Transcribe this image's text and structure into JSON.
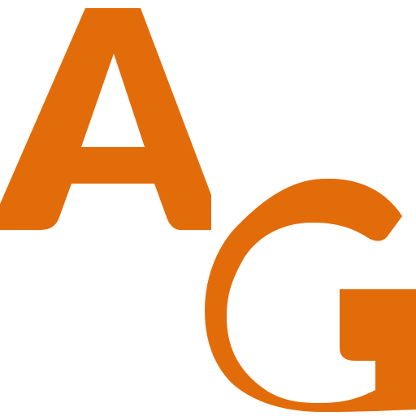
{
  "logo": {
    "letters": [
      "A",
      "G"
    ],
    "color": "#E36C0A",
    "background": "#FFFFFF"
  }
}
